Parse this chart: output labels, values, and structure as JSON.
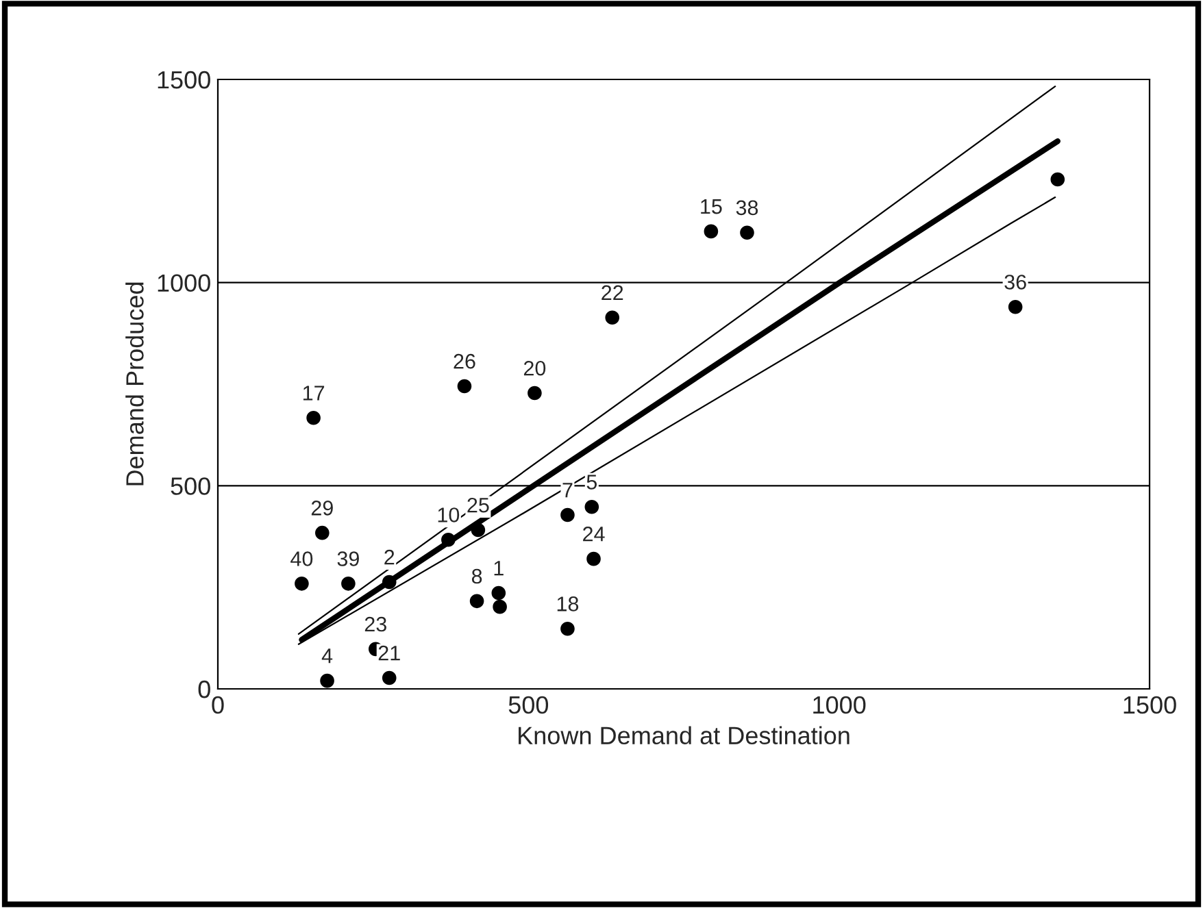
{
  "chart_data": {
    "type": "scatter",
    "xlabel": "Known Demand at Destination",
    "ylabel": "Demand Produced",
    "xlim": [
      0,
      1500
    ],
    "ylim": [
      0,
      1500
    ],
    "xticks": [
      0,
      500,
      1000,
      1500
    ],
    "yticks": [
      0,
      500,
      1000,
      1500
    ],
    "grid": "y",
    "series": [
      {
        "marker": "circle",
        "color": "#000000",
        "x": [
          154,
          168,
          135,
          210,
          276,
          254,
          176,
          276,
          397,
          510,
          371,
          419,
          417,
          452,
          454,
          563,
          602,
          605,
          563,
          794,
          852,
          635,
          1284,
          1352
        ],
        "values": [
          667,
          384,
          259,
          259,
          263,
          98,
          20,
          27,
          745,
          728,
          367,
          391,
          216,
          236,
          202,
          428,
          448,
          320,
          148,
          1126,
          1123,
          914,
          940,
          1254
        ]
      },
      {
        "type": "line",
        "marker": "none",
        "color": "#000000",
        "x": [
          135,
          1001,
          1352
        ],
        "values": [
          121,
          1000,
          1348
        ]
      },
      {
        "type": "line",
        "marker": "none",
        "color": "#000000",
        "x": [
          130,
          915,
          1348
        ],
        "values": [
          135,
          1000,
          1483
        ]
      },
      {
        "type": "line",
        "marker": "none",
        "color": "#000000",
        "x": [
          130,
          487,
          1118,
          1277,
          1348
        ],
        "values": [
          110,
          428,
          1000,
          1146,
          1210
        ]
      }
    ],
    "annotations": [
      {
        "text": "17",
        "x": 154,
        "y": 667
      },
      {
        "text": "29",
        "x": 168,
        "y": 384
      },
      {
        "text": "40",
        "x": 135,
        "y": 259
      },
      {
        "text": "39",
        "x": 210,
        "y": 259
      },
      {
        "text": "2",
        "x": 276,
        "y": 263
      },
      {
        "text": "23",
        "x": 254,
        "y": 98
      },
      {
        "text": "4",
        "x": 176,
        "y": 20
      },
      {
        "text": "21",
        "x": 276,
        "y": 27
      },
      {
        "text": "26",
        "x": 397,
        "y": 745
      },
      {
        "text": "20",
        "x": 510,
        "y": 728
      },
      {
        "text": "10",
        "x": 371,
        "y": 367
      },
      {
        "text": "25",
        "x": 419,
        "y": 391
      },
      {
        "text": "8",
        "x": 417,
        "y": 216
      },
      {
        "text": "1",
        "x": 452,
        "y": 236
      },
      {
        "text": "7",
        "x": 563,
        "y": 428
      },
      {
        "text": "5",
        "x": 602,
        "y": 448
      },
      {
        "text": "24",
        "x": 605,
        "y": 320
      },
      {
        "text": "18",
        "x": 563,
        "y": 148
      },
      {
        "text": "15",
        "x": 794,
        "y": 1126
      },
      {
        "text": "38",
        "x": 852,
        "y": 1123
      },
      {
        "text": "22",
        "x": 635,
        "y": 914
      },
      {
        "text": "36",
        "x": 1284,
        "y": 940
      }
    ]
  }
}
